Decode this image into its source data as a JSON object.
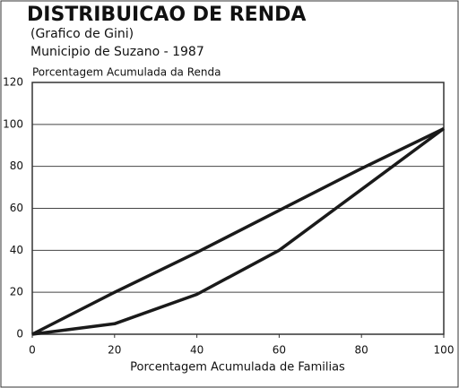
{
  "chart_data": {
    "type": "line",
    "title": "DISTRIBUICAO DE RENDA",
    "subtitle": "(Grafico de Gini)",
    "subtitle2": "Municipio de Suzano - 1987",
    "y_label": "Porcentagem Acumulada da Renda",
    "x_label": "Porcentagem Acumulada de Familias",
    "x": [
      0,
      20,
      40,
      60,
      80,
      100
    ],
    "series": [
      {
        "color": "#1a1a1a",
        "values": [
          0,
          20,
          39,
          59,
          79,
          98
        ]
      },
      {
        "color": "#1a1a1a",
        "values": [
          0,
          5,
          19,
          40,
          69,
          98
        ]
      }
    ],
    "xlim": [
      0,
      100
    ],
    "xticks": [
      0,
      20,
      40,
      60,
      80,
      100
    ],
    "ylim": [
      0,
      120
    ],
    "yticks": [
      0,
      20,
      40,
      60,
      80,
      100,
      120
    ],
    "grid": true
  }
}
